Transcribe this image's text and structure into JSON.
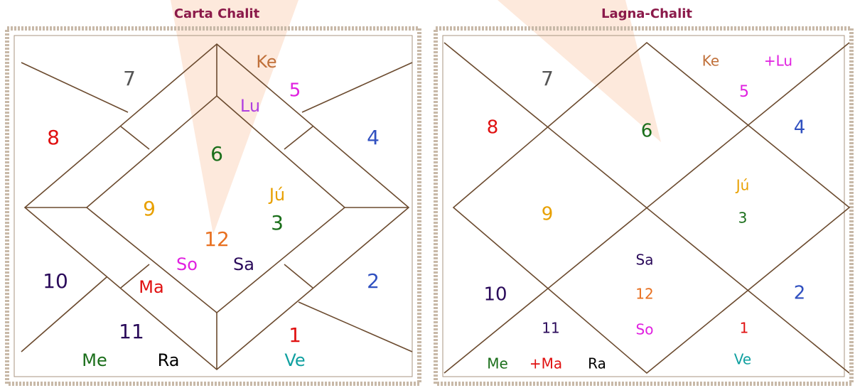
{
  "charts": [
    {
      "title": "Carta Chalit",
      "labels": [
        {
          "text": "7",
          "color": "#555555"
        },
        {
          "text": "Ke",
          "color": "#c0703a"
        },
        {
          "text": "5",
          "color": "#e020e0"
        },
        {
          "text": "Lu",
          "color": "#b040e0"
        },
        {
          "text": "8",
          "color": "#e01010"
        },
        {
          "text": "4",
          "color": "#3050c0"
        },
        {
          "text": "6",
          "color": "#1a6e1a"
        },
        {
          "text": "Jú",
          "color": "#e8a000"
        },
        {
          "text": "9",
          "color": "#e8a000"
        },
        {
          "text": "3",
          "color": "#1a6e1a"
        },
        {
          "text": "12",
          "color": "#e87020"
        },
        {
          "text": "So",
          "color": "#e020e0"
        },
        {
          "text": "Sa",
          "color": "#2a0a5a"
        },
        {
          "text": "10",
          "color": "#2a0a5a"
        },
        {
          "text": "2",
          "color": "#3050c0"
        },
        {
          "text": "Ma",
          "color": "#e01010"
        },
        {
          "text": "11",
          "color": "#2a0a5a"
        },
        {
          "text": "1",
          "color": "#e01010"
        },
        {
          "text": "Me",
          "color": "#1a6e1a"
        },
        {
          "text": "Ra",
          "color": "#000000"
        },
        {
          "text": "Ve",
          "color": "#10a0a0"
        }
      ]
    },
    {
      "title": "Lagna-Chalit",
      "labels": [
        {
          "text": "7",
          "color": "#555555"
        },
        {
          "text": "Ke",
          "color": "#c0703a"
        },
        {
          "text": "+Lu",
          "color": "#e020e0"
        },
        {
          "text": "5",
          "color": "#e020e0"
        },
        {
          "text": "8",
          "color": "#e01010"
        },
        {
          "text": "6",
          "color": "#1a6e1a"
        },
        {
          "text": "4",
          "color": "#3050c0"
        },
        {
          "text": "Jú",
          "color": "#e8a000"
        },
        {
          "text": "9",
          "color": "#e8a000"
        },
        {
          "text": "3",
          "color": "#1a6e1a"
        },
        {
          "text": "Sa",
          "color": "#2a0a5a"
        },
        {
          "text": "10",
          "color": "#2a0a5a"
        },
        {
          "text": "12",
          "color": "#e87020"
        },
        {
          "text": "2",
          "color": "#3050c0"
        },
        {
          "text": "11",
          "color": "#2a0a5a"
        },
        {
          "text": "1",
          "color": "#e01010"
        },
        {
          "text": "So",
          "color": "#e020e0"
        },
        {
          "text": "Ve",
          "color": "#10a0a0"
        },
        {
          "text": "Me",
          "color": "#1a6e1a"
        },
        {
          "text": "+Ma",
          "color": "#e01010"
        },
        {
          "text": "Ra",
          "color": "#000000"
        }
      ]
    }
  ]
}
